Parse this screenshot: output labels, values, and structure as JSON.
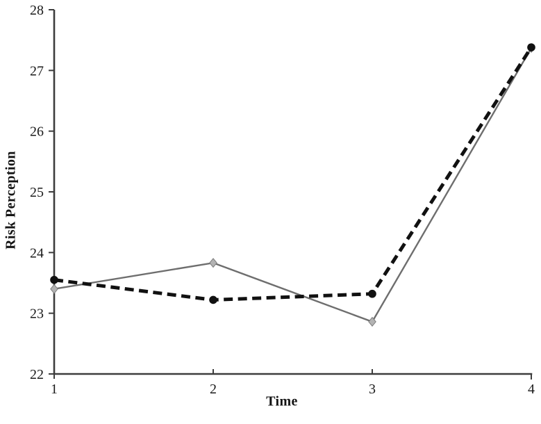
{
  "chart_data": {
    "type": "line",
    "title": "",
    "xlabel": "Time",
    "ylabel": "Risk Perception",
    "x": [
      1,
      2,
      3,
      4
    ],
    "xlim": [
      1,
      4
    ],
    "ylim": [
      22,
      28
    ],
    "xticks": [
      "1",
      "2",
      "3",
      "4"
    ],
    "yticks": [
      "22",
      "23",
      "24",
      "25",
      "26",
      "27",
      "28"
    ],
    "grid": false,
    "legend_position": "none",
    "series": [
      {
        "name": "dashed-black-circle-series",
        "values": [
          23.55,
          23.22,
          23.32,
          27.38
        ],
        "color": "#111111",
        "line_style": "dashed",
        "marker": "circle"
      },
      {
        "name": "solid-gray-diamond-series",
        "values": [
          23.4,
          23.83,
          22.86,
          27.37
        ],
        "color": "#6e6e6e",
        "line_style": "solid",
        "marker": "diamond",
        "marker_fill": "#b3b3b3",
        "marker_stroke": "#7d7d7d"
      }
    ]
  },
  "colors": {
    "background": "#ffffff",
    "axis": "#3d3d3d",
    "tick_label": "#1a1a1a"
  }
}
